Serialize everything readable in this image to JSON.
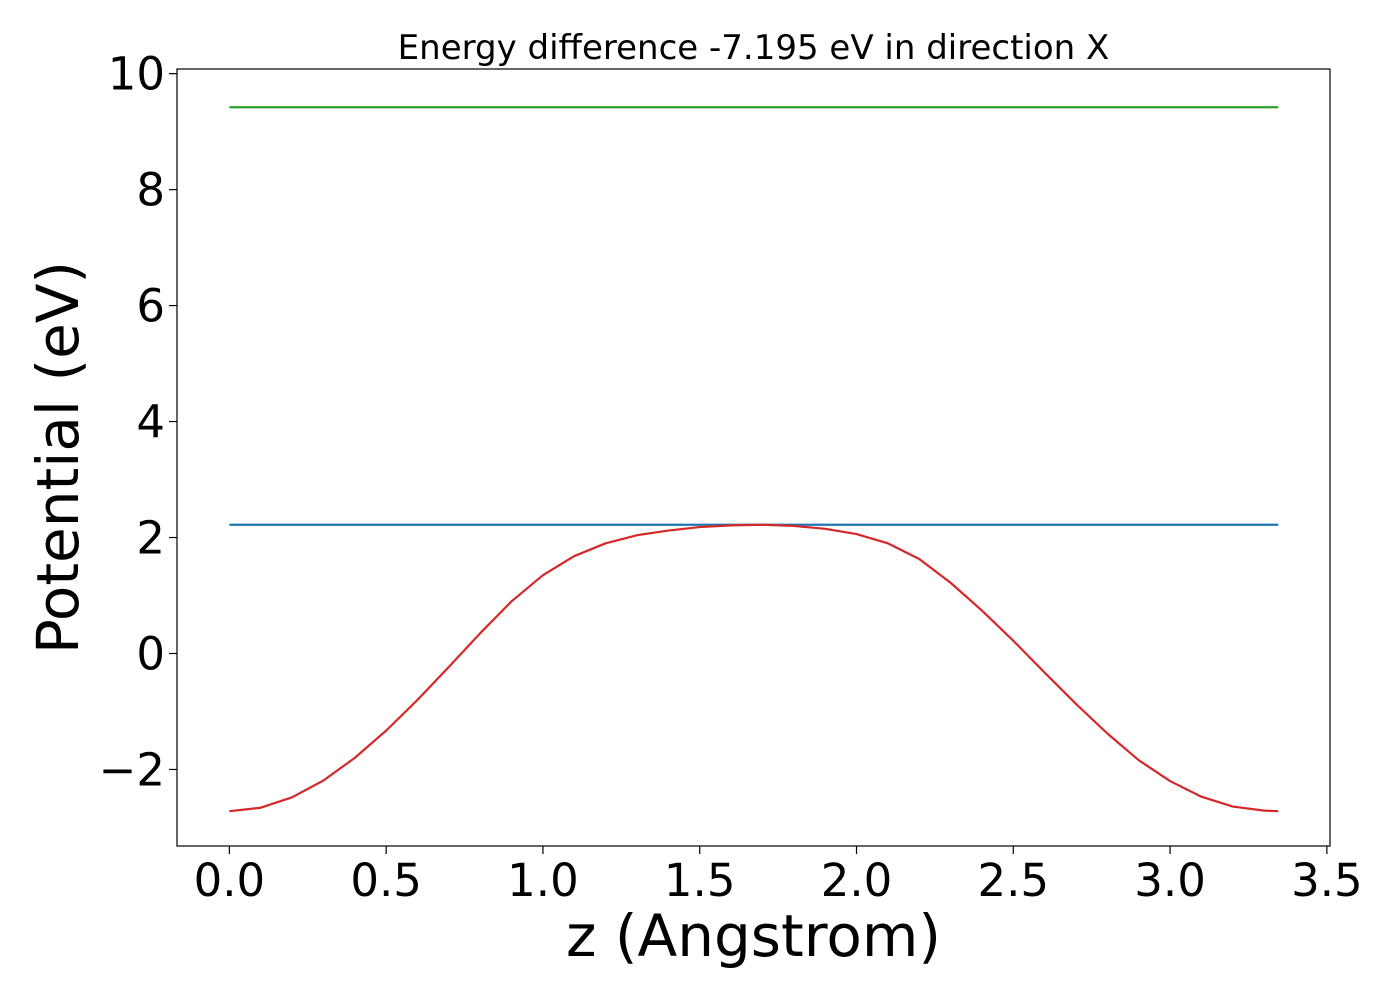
{
  "chart_data": {
    "type": "line",
    "title": "Energy difference -7.195 eV in direction X",
    "xlabel": "z (Angstrom)",
    "ylabel": "Potential (eV)",
    "xlim": [
      -0.167,
      3.51
    ],
    "ylim": [
      -3.32,
      10.08
    ],
    "xticks": [
      {
        "value": 0.0,
        "label": "0.0"
      },
      {
        "value": 0.5,
        "label": "0.5"
      },
      {
        "value": 1.0,
        "label": "1.0"
      },
      {
        "value": 1.5,
        "label": "1.5"
      },
      {
        "value": 2.0,
        "label": "2.0"
      },
      {
        "value": 2.5,
        "label": "2.5"
      },
      {
        "value": 3.0,
        "label": "3.0"
      },
      {
        "value": 3.5,
        "label": "3.5"
      }
    ],
    "yticks": [
      {
        "value": -2,
        "label": "−2"
      },
      {
        "value": 0,
        "label": "0"
      },
      {
        "value": 2,
        "label": "2"
      },
      {
        "value": 4,
        "label": "4"
      },
      {
        "value": 6,
        "label": "6"
      },
      {
        "value": 8,
        "label": "8"
      },
      {
        "value": 10,
        "label": "10"
      }
    ],
    "grid": false,
    "legend": false,
    "series": [
      {
        "color": "#2ca02c",
        "x": [
          0.0,
          3.345
        ],
        "y": [
          9.42,
          9.42
        ]
      },
      {
        "color": "#1f77b4",
        "x": [
          0.0,
          3.345
        ],
        "y": [
          2.22,
          2.22
        ]
      },
      {
        "color": "#d62728",
        "x": [
          0.0,
          0.1,
          0.2,
          0.3,
          0.4,
          0.5,
          0.6,
          0.7,
          0.8,
          0.9,
          1.0,
          1.1,
          1.2,
          1.3,
          1.4,
          1.5,
          1.6,
          1.7,
          1.8,
          1.9,
          2.0,
          2.1,
          2.2,
          2.3,
          2.4,
          2.5,
          2.6,
          2.7,
          2.8,
          2.9,
          3.0,
          3.1,
          3.2,
          3.3,
          3.345
        ],
        "y": [
          -2.72,
          -2.66,
          -2.48,
          -2.19,
          -1.8,
          -1.33,
          -0.8,
          -0.23,
          0.35,
          0.9,
          1.35,
          1.68,
          1.9,
          2.04,
          2.12,
          2.18,
          2.21,
          2.22,
          2.2,
          2.15,
          2.06,
          1.9,
          1.63,
          1.22,
          0.74,
          0.22,
          -0.33,
          -0.87,
          -1.38,
          -1.84,
          -2.2,
          -2.47,
          -2.64,
          -2.71,
          -2.72
        ]
      }
    ]
  }
}
